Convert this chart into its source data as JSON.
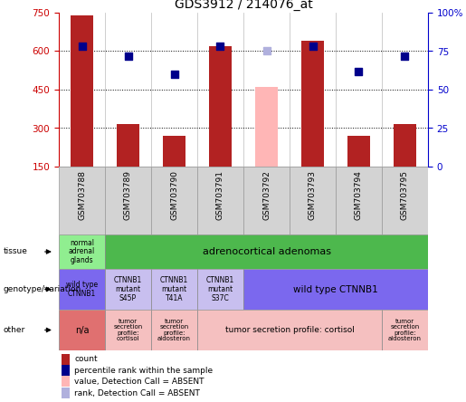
{
  "title": "GDS3912 / 214076_at",
  "samples": [
    "GSM703788",
    "GSM703789",
    "GSM703790",
    "GSM703791",
    "GSM703792",
    "GSM703793",
    "GSM703794",
    "GSM703795"
  ],
  "bar_values": [
    740,
    315,
    270,
    620,
    null,
    640,
    270,
    315
  ],
  "bar_absent": [
    null,
    null,
    null,
    null,
    460,
    null,
    null,
    null
  ],
  "bar_color_normal": "#b22222",
  "bar_color_absent": "#ffb6b6",
  "dot_values": [
    78,
    72,
    60,
    78,
    null,
    78,
    62,
    72
  ],
  "dot_absent": [
    null,
    null,
    null,
    null,
    75,
    null,
    null,
    null
  ],
  "dot_color_normal": "#00008b",
  "dot_color_absent": "#b0b0dd",
  "ylim_left": [
    150,
    750
  ],
  "ylim_right": [
    0,
    100
  ],
  "yticks_left": [
    150,
    300,
    450,
    600,
    750
  ],
  "yticks_right": [
    0,
    25,
    50,
    75,
    100
  ],
  "ytick_labels_right": [
    "0",
    "25",
    "50",
    "75",
    "100%"
  ],
  "hlines": [
    300,
    450,
    600
  ],
  "legend_items": [
    {
      "color": "#b22222",
      "label": "count"
    },
    {
      "color": "#00008b",
      "label": "percentile rank within the sample"
    },
    {
      "color": "#ffb6b6",
      "label": "value, Detection Call = ABSENT"
    },
    {
      "color": "#b0b0dd",
      "label": "rank, Detection Call = ABSENT"
    }
  ],
  "left_axis_color": "#cc0000",
  "right_axis_color": "#0000cc"
}
